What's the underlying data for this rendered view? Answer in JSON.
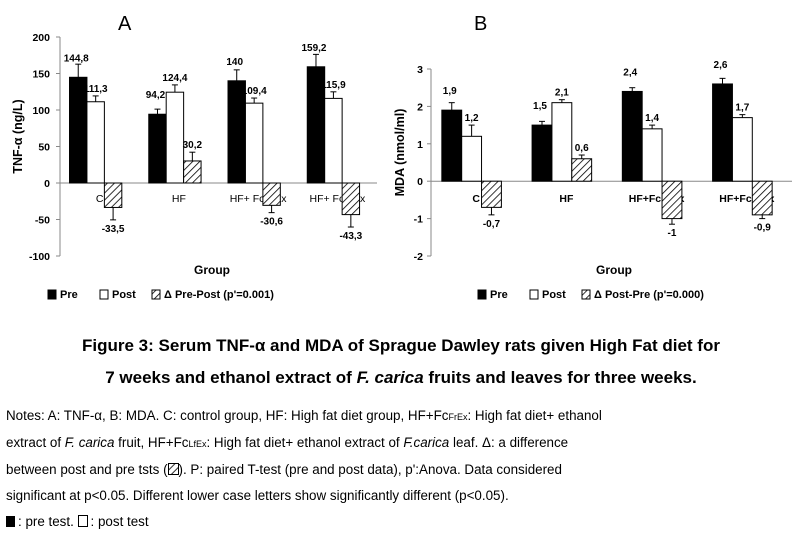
{
  "chart_data": [
    {
      "type": "bar",
      "panel_letter": "A",
      "ylabel": "TNF-α (ng/L)",
      "xlabel": "Group",
      "ylim": [
        -100,
        200
      ],
      "yticks": [
        -100,
        -50,
        0,
        50,
        100,
        150,
        200
      ],
      "categories": [
        "C",
        "HF",
        "HF+ FcFrEx",
        "HF+ FcLfEx"
      ],
      "series": [
        {
          "name": "Pre",
          "fill": "#000000",
          "values": [
            144.8,
            94.2,
            140,
            159.2
          ],
          "errors": [
            18,
            7,
            15,
            17
          ],
          "labels": [
            "144,8",
            "94,2",
            "140",
            "159,2"
          ]
        },
        {
          "name": "Post",
          "fill": "#ffffff",
          "values": [
            111.3,
            124.4,
            109.4,
            115.9
          ],
          "errors": [
            8,
            10,
            7,
            9
          ],
          "labels": [
            "111,3",
            "124,4",
            "109,4",
            "115,9"
          ]
        },
        {
          "name": "Δ Pre-Post (p'=0.001)",
          "fill": "hatch",
          "values": [
            -33.5,
            30.2,
            -30.6,
            -43.3
          ],
          "errors": [
            17,
            12,
            10,
            17
          ],
          "labels": [
            "-33,5",
            "30,2",
            "-30,6",
            "-43,3"
          ]
        }
      ],
      "grid": false,
      "legend_position": "bottom"
    },
    {
      "type": "bar",
      "panel_letter": "B",
      "ylabel": "MDA (nmol/ml)",
      "xlabel": "Group",
      "ylim": [
        -2,
        3
      ],
      "yticks": [
        -2,
        -1,
        0,
        1,
        2,
        3
      ],
      "categories": [
        "C",
        "HF",
        "HF+FcFrEx",
        "HF+FcLfEx"
      ],
      "series": [
        {
          "name": "Pre",
          "fill": "#000000",
          "values": [
            1.9,
            1.5,
            2.4,
            2.6
          ],
          "errors": [
            0.2,
            0.1,
            0.1,
            0.15
          ],
          "labels": [
            "1,9",
            "1,5",
            "2,4",
            "2,6"
          ]
        },
        {
          "name": "Post",
          "fill": "#ffffff",
          "values": [
            1.2,
            2.1,
            1.4,
            1.7
          ],
          "errors": [
            0.3,
            0.08,
            0.1,
            0.08
          ],
          "labels": [
            "1,2",
            "2,1",
            "1,4",
            "1,7"
          ]
        },
        {
          "name": "Δ Post-Pre (p'=0.000)",
          "fill": "hatch",
          "values": [
            -0.7,
            0.6,
            -1,
            -0.9
          ],
          "errors": [
            0.2,
            0.1,
            0.15,
            0.1
          ],
          "labels": [
            "-0,7",
            "0,6",
            "-1",
            "-0,9"
          ]
        }
      ],
      "grid": false,
      "legend_position": "bottom"
    }
  ],
  "caption": {
    "line1": "Figure 3: Serum TNF-α and MDA of Sprague Dawley rats given High Fat diet for",
    "line2_pre": "7 weeks and ethanol extract of ",
    "line2_em": "F. carica",
    "line2_post": " fruits and leaves for three weeks."
  },
  "notes": {
    "l1a": "Notes: A: TNF-α, B: MDA. C: control group, HF: High fat diet group, HF+Fc",
    "l1s": "FrEx",
    "l1b": ": High fat diet+ ethanol",
    "l2a": "extract of ",
    "l2e": "F. carica",
    "l2b": " fruit, HF+Fc",
    "l2s": "LfEx",
    "l2c": ": High fat diet+ ethanol extract of ",
    "l2e2": "F.carica",
    "l2d": " leaf. Δ: a difference",
    "l3a": "between post and pre tsts (",
    "l3b": "). P: paired T-test (pre and post data), p':Anova. Data considered",
    "l4": "significant at p<0.05. Different lower case letters show significantly different (p<0.05).",
    "l5a": ": pre test. ",
    "l5b": ": post test"
  }
}
